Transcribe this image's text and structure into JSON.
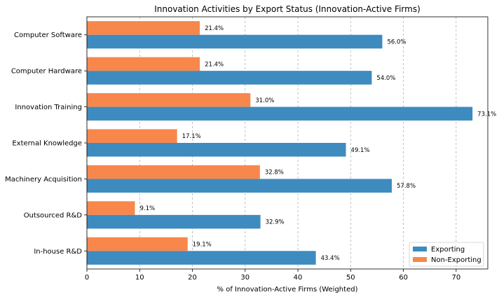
{
  "chart_data": {
    "type": "bar",
    "orientation": "horizontal",
    "title": "Innovation Activities by Export Status (Innovation-Active Firms)",
    "xlabel": "% of Innovation-Active Firms (Weighted)",
    "ylabel": "",
    "xlim": [
      0,
      76
    ],
    "xticks": [
      0,
      10,
      20,
      30,
      40,
      50,
      60,
      70
    ],
    "grid": "x-dashed",
    "legend_position": "bottom-right",
    "categories": [
      "Computer Software",
      "Computer Hardware",
      "Innovation Training",
      "External Knowledge",
      "Machinery Acquisition",
      "Outsourced R&D",
      "In-house R&D"
    ],
    "series": [
      {
        "name": "Exporting",
        "color": "#3e8bbf",
        "values": [
          56.0,
          54.0,
          73.1,
          49.1,
          57.8,
          32.9,
          43.4
        ],
        "labels": [
          "56.0%",
          "54.0%",
          "73.1%",
          "49.1%",
          "57.8%",
          "32.9%",
          "43.4%"
        ]
      },
      {
        "name": "Non-Exporting",
        "color": "#f8874b",
        "values": [
          21.4,
          21.4,
          31.0,
          17.1,
          32.8,
          9.1,
          19.1
        ],
        "labels": [
          "21.4%",
          "21.4%",
          "31.0%",
          "17.1%",
          "32.8%",
          "9.1%",
          "19.1%"
        ]
      }
    ]
  }
}
